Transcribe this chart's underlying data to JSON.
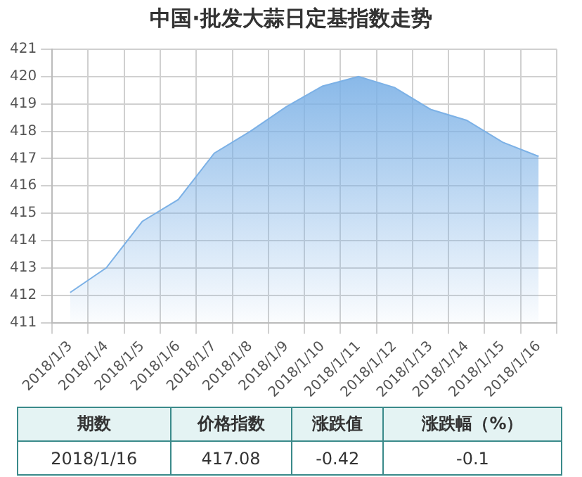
{
  "chart_data": {
    "type": "area",
    "title": "中国·批发大蒜日定基指数走势",
    "categories": [
      "2018/1/3",
      "2018/1/4",
      "2018/1/5",
      "2018/1/6",
      "2018/1/7",
      "2018/1/8",
      "2018/1/9",
      "2018/1/10",
      "2018/1/11",
      "2018/1/12",
      "2018/1/13",
      "2018/1/14",
      "2018/1/15",
      "2018/1/16"
    ],
    "series": [
      {
        "color": "#7cb1e6",
        "values": [
          412.1,
          413.0,
          414.7,
          415.5,
          417.2,
          418.0,
          418.9,
          419.65,
          420.0,
          419.6,
          418.8,
          418.4,
          417.6,
          417.08
        ]
      }
    ],
    "ylim": [
      411,
      421
    ],
    "yticks": [
      411,
      412,
      413,
      414,
      415,
      416,
      417,
      418,
      419,
      420,
      421
    ],
    "grid": true,
    "legend": false,
    "marker": "none",
    "annotations": [
      "期数",
      "价格指数",
      "涨跌值",
      "涨跌幅（%）",
      "2018/1/16",
      "417.08",
      "-0.42",
      "-0.1"
    ]
  }
}
